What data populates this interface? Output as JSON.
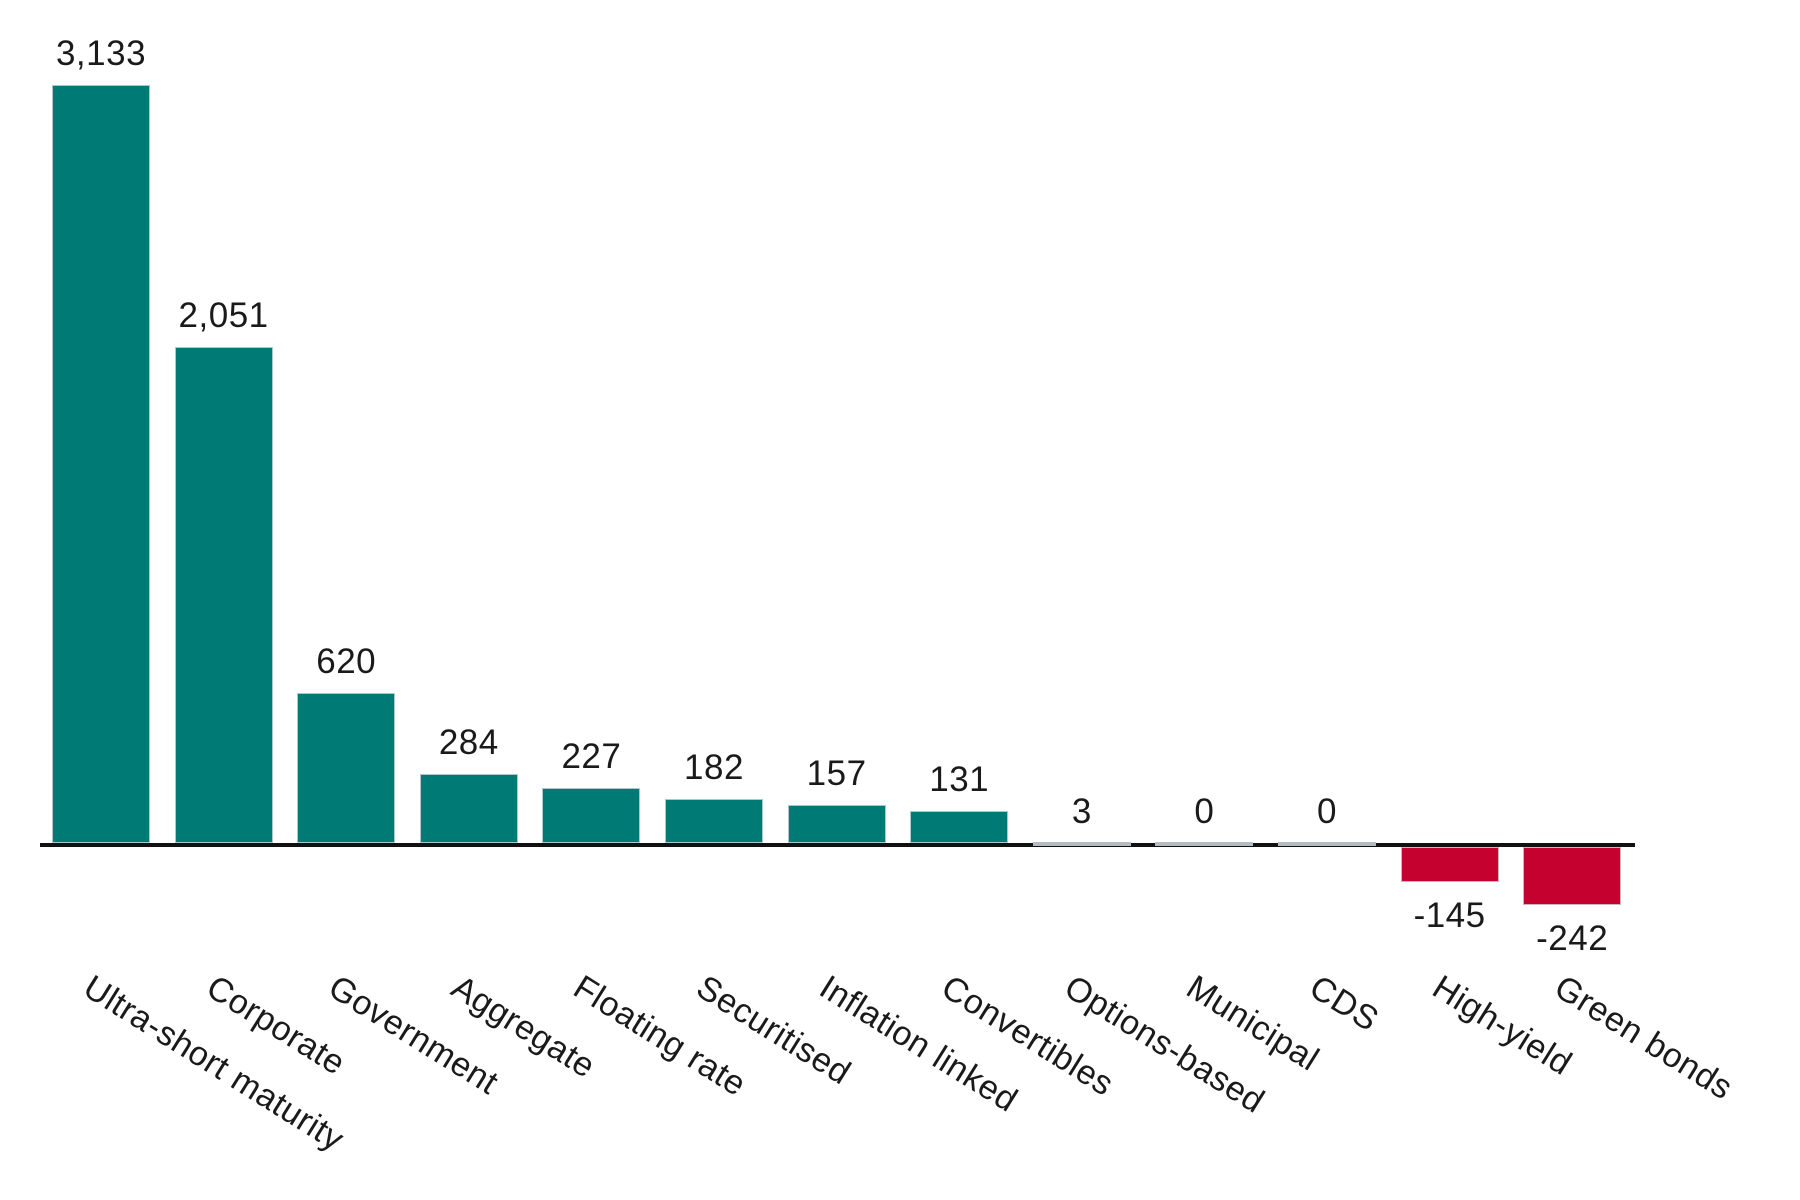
{
  "chart_data": {
    "type": "bar",
    "categories": [
      "Ultra-short maturity",
      "Corporate",
      "Government",
      "Aggregate",
      "Floating rate",
      "Securitised",
      "Inflation linked",
      "Convertibles",
      "Options-based",
      "Municipal",
      "CDS",
      "High-yield",
      "Green bonds"
    ],
    "values": [
      3133,
      2051,
      620,
      284,
      227,
      182,
      157,
      131,
      3,
      0,
      0,
      -145,
      -242
    ],
    "value_labels": [
      "3,133",
      "2,051",
      "620",
      "284",
      "227",
      "182",
      "157",
      "131",
      "3",
      "0",
      "0",
      "-145",
      "-242"
    ],
    "title": "",
    "xlabel": "",
    "ylabel": "",
    "ylim": [
      -242,
      3133
    ],
    "grid": false,
    "legend": null,
    "colors": {
      "positive": "#007A74",
      "negative": "#C5022F",
      "zero_bar": "#B6BCC3",
      "axis": "#111111",
      "text": "#1A1A1A"
    }
  }
}
